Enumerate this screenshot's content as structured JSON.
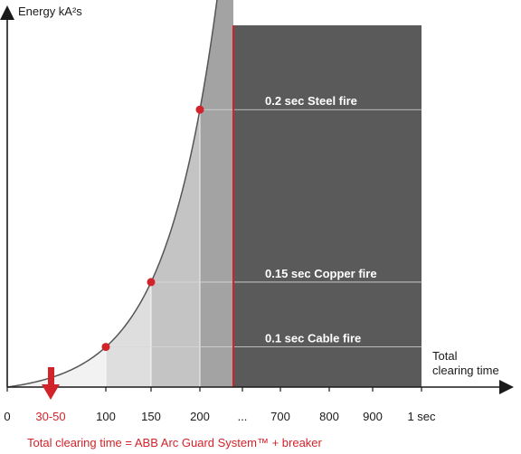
{
  "chart_data": {
    "type": "area",
    "ylabel": "Energy kA²s",
    "xlabel": [
      "Total",
      "clearing time"
    ],
    "x_ticks": [
      {
        "label": "0",
        "value": 0
      },
      {
        "label": "100",
        "value": 100
      },
      {
        "label": "150",
        "value": 150
      },
      {
        "label": "200",
        "value": 200
      },
      {
        "label": "...",
        "value": null
      },
      {
        "label": "700",
        "value": 700
      },
      {
        "label": "800",
        "value": 800
      },
      {
        "label": "900",
        "value": 900
      },
      {
        "label": "1 sec",
        "value": 1000
      }
    ],
    "highlight_tick": {
      "label": "30-50",
      "range": [
        30,
        50
      ]
    },
    "curve_points": [
      {
        "x": 100,
        "label": "0.1 sec Cable fire"
      },
      {
        "x": 150,
        "label": "0.15 sec Copper fire"
      },
      {
        "x": 200,
        "label": "0.2 sec Steel fire"
      }
    ],
    "footnote": "Total clearing time = ABB Arc Guard System™ + breaker",
    "colors": {
      "dark_region": "#5a5a5a",
      "red": "#d2232a",
      "band_1": "#f2f2f2",
      "band_2": "#dedede",
      "band_3": "#c4c4c4",
      "band_4": "#a3a3a3",
      "curve": "#555555",
      "axis": "#1a1a1a"
    }
  }
}
